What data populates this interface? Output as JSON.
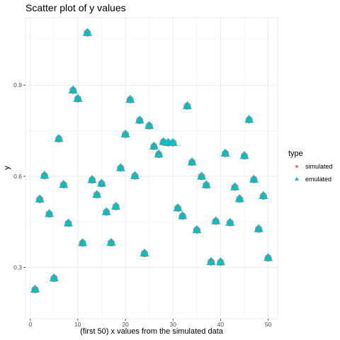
{
  "chart_data": {
    "type": "scatter",
    "title": "Scatter plot of y values",
    "xlabel": "(first 50) x values from the simulated data",
    "ylabel": "y",
    "xlim": [
      -1.0,
      52.0
    ],
    "ylim": [
      0.131,
      1.122
    ],
    "xticks": [
      0,
      10,
      20,
      30,
      40,
      50
    ],
    "xtick_labels": [
      "0",
      "10",
      "20",
      "30",
      "40",
      "50"
    ],
    "yticks": [
      0.3,
      0.6,
      0.9
    ],
    "ytick_labels": [
      "0.3",
      "0.6",
      "0.9"
    ],
    "grid": true,
    "legend_position": "right",
    "legend_title": "type",
    "x": [
      1,
      2,
      3,
      4,
      5,
      6,
      7,
      8,
      9,
      10,
      11,
      12,
      13,
      14,
      15,
      16,
      17,
      18,
      19,
      20,
      21,
      22,
      23,
      24,
      25,
      26,
      27,
      28,
      29,
      30,
      31,
      32,
      33,
      34,
      35,
      36,
      37,
      38,
      39,
      40,
      41,
      42,
      43,
      44,
      45,
      46,
      47,
      48,
      49,
      50
    ],
    "series": [
      {
        "name": "simulated",
        "marker": "circle",
        "color": "#f8766d",
        "values": [
          0.227,
          0.524,
          0.602,
          0.476,
          0.264,
          0.723,
          0.572,
          0.445,
          0.883,
          0.855,
          0.38,
          1.072,
          0.588,
          0.539,
          0.576,
          0.482,
          0.381,
          0.5,
          0.627,
          0.738,
          0.852,
          0.601,
          0.784,
          0.346,
          0.766,
          0.698,
          0.672,
          0.713,
          0.71,
          0.71,
          0.495,
          0.469,
          0.831,
          0.646,
          0.423,
          0.599,
          0.571,
          0.318,
          0.452,
          0.317,
          0.675,
          0.447,
          0.564,
          0.525,
          0.667,
          0.786,
          0.589,
          0.426,
          0.535,
          0.331
        ]
      },
      {
        "name": "emulated",
        "marker": "triangle",
        "color": "#00bfc4",
        "values": [
          0.227,
          0.524,
          0.602,
          0.476,
          0.264,
          0.723,
          0.572,
          0.445,
          0.883,
          0.855,
          0.38,
          1.072,
          0.588,
          0.539,
          0.576,
          0.482,
          0.381,
          0.5,
          0.627,
          0.738,
          0.852,
          0.601,
          0.784,
          0.346,
          0.766,
          0.698,
          0.672,
          0.713,
          0.71,
          0.71,
          0.495,
          0.469,
          0.831,
          0.646,
          0.423,
          0.599,
          0.571,
          0.318,
          0.452,
          0.317,
          0.675,
          0.447,
          0.564,
          0.525,
          0.667,
          0.786,
          0.589,
          0.426,
          0.535,
          0.331
        ]
      }
    ]
  }
}
